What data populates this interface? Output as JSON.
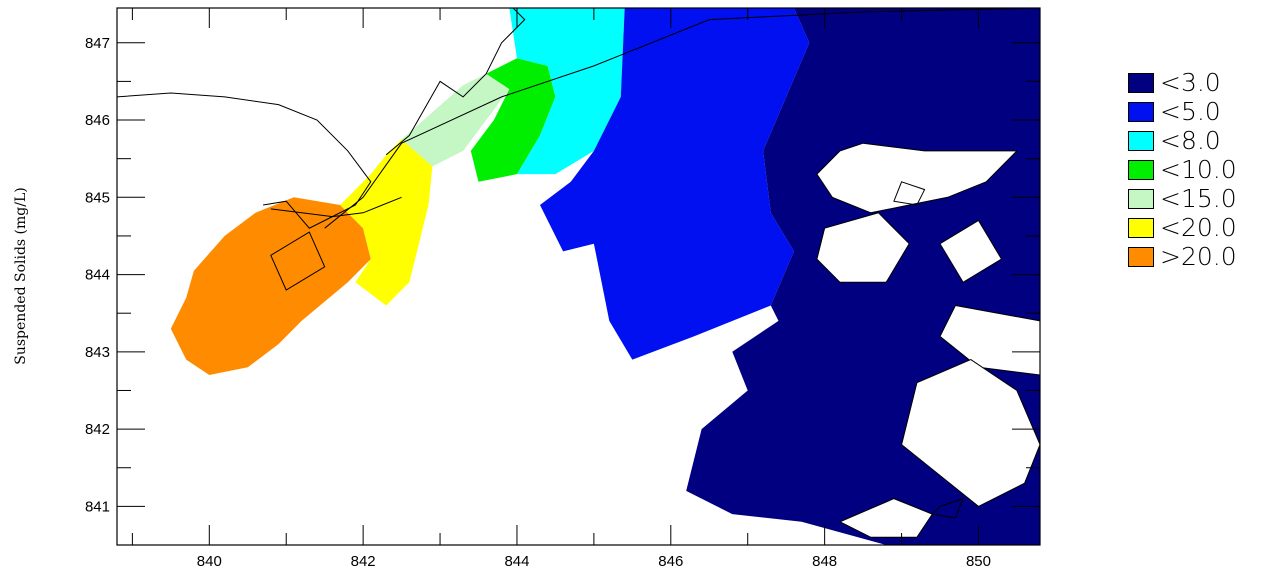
{
  "chart_data": {
    "type": "map",
    "title": "",
    "xlabel": "",
    "ylabel": "Suspended Solids (mg/L)",
    "xlim": [
      838.8,
      850.8
    ],
    "ylim": [
      840.5,
      847.45
    ],
    "x_ticks": [
      "840",
      "842",
      "844",
      "846",
      "848",
      "850"
    ],
    "y_ticks": [
      "841",
      "842",
      "843",
      "844",
      "845",
      "846",
      "847"
    ],
    "x_tick_values": [
      840,
      842,
      844,
      846,
      848,
      850
    ],
    "y_tick_values": [
      841,
      842,
      843,
      844,
      845,
      846,
      847
    ],
    "legend": [
      {
        "label": "<3.0",
        "color": "#000080"
      },
      {
        "label": "<5.0",
        "color": "#0010f0"
      },
      {
        "label": "<8.0",
        "color": "#00ffff"
      },
      {
        "label": "<10.0",
        "color": "#00ee00"
      },
      {
        "label": "<15.0",
        "color": "#c4f7c4"
      },
      {
        "label": "<20.0",
        "color": "#ffff00"
      },
      {
        "label": ">20.0",
        "color": "#ff8c00"
      }
    ],
    "plume_regions": [
      {
        "class": ">20.0",
        "color": "#ff8c00",
        "points": [
          [
            840.5,
            842.8
          ],
          [
            840.0,
            842.7
          ],
          [
            839.7,
            842.9
          ],
          [
            839.5,
            843.3
          ],
          [
            839.7,
            843.7
          ],
          [
            839.8,
            844.05
          ],
          [
            840.2,
            844.5
          ],
          [
            840.6,
            844.8
          ],
          [
            841.1,
            845.0
          ],
          [
            841.7,
            844.9
          ],
          [
            842.0,
            844.6
          ],
          [
            842.1,
            844.2
          ],
          [
            841.8,
            843.9
          ],
          [
            841.2,
            843.4
          ],
          [
            840.9,
            843.1
          ],
          [
            840.5,
            842.8
          ]
        ]
      },
      {
        "class": "<20.0",
        "color": "#ffff00",
        "points": [
          [
            841.7,
            844.9
          ],
          [
            842.1,
            845.3
          ],
          [
            842.3,
            845.55
          ],
          [
            842.5,
            845.75
          ],
          [
            842.9,
            845.4
          ],
          [
            842.85,
            844.9
          ],
          [
            842.7,
            844.3
          ],
          [
            842.6,
            843.9
          ],
          [
            842.3,
            843.6
          ],
          [
            841.9,
            843.9
          ],
          [
            842.1,
            844.2
          ],
          [
            842.0,
            844.6
          ]
        ]
      },
      {
        "class": "<15.0",
        "color": "#c4f7c4",
        "points": [
          [
            842.5,
            845.75
          ],
          [
            842.9,
            846.1
          ],
          [
            843.3,
            846.45
          ],
          [
            843.6,
            846.6
          ],
          [
            843.9,
            846.4
          ],
          [
            843.6,
            846.0
          ],
          [
            843.3,
            845.6
          ],
          [
            842.9,
            845.4
          ]
        ]
      },
      {
        "class": "<10.0",
        "color": "#00ee00",
        "points": [
          [
            843.6,
            846.6
          ],
          [
            844.0,
            846.8
          ],
          [
            844.4,
            846.7
          ],
          [
            844.5,
            846.3
          ],
          [
            844.3,
            845.8
          ],
          [
            844.0,
            845.3
          ],
          [
            843.5,
            845.2
          ],
          [
            843.4,
            845.6
          ],
          [
            843.7,
            846.0
          ],
          [
            843.9,
            846.4
          ]
        ]
      },
      {
        "class": "<8.0",
        "color": "#00ffff",
        "points": [
          [
            844.0,
            846.8
          ],
          [
            843.9,
            847.45
          ],
          [
            845.4,
            847.45
          ],
          [
            845.35,
            846.3
          ],
          [
            845.0,
            845.6
          ],
          [
            844.5,
            845.3
          ],
          [
            844.0,
            845.3
          ],
          [
            844.3,
            845.8
          ],
          [
            844.5,
            846.3
          ],
          [
            844.4,
            846.7
          ]
        ]
      },
      {
        "class": "<5.0",
        "color": "#0010f0",
        "points": [
          [
            845.4,
            847.45
          ],
          [
            847.6,
            847.45
          ],
          [
            847.8,
            847.0
          ],
          [
            847.5,
            846.3
          ],
          [
            847.2,
            845.6
          ],
          [
            847.3,
            844.8
          ],
          [
            847.6,
            844.3
          ],
          [
            847.3,
            843.6
          ],
          [
            846.3,
            843.2
          ],
          [
            845.5,
            842.9
          ],
          [
            845.2,
            843.4
          ],
          [
            845.0,
            844.4
          ],
          [
            844.6,
            844.3
          ],
          [
            844.3,
            844.9
          ],
          [
            844.7,
            845.2
          ],
          [
            845.0,
            845.6
          ],
          [
            845.35,
            846.3
          ]
        ]
      },
      {
        "class": "<3.0",
        "color": "#000080",
        "points": [
          [
            847.6,
            847.45
          ],
          [
            850.8,
            847.45
          ],
          [
            850.8,
            840.5
          ],
          [
            848.8,
            840.5
          ],
          [
            847.7,
            840.8
          ],
          [
            846.8,
            840.9
          ],
          [
            846.2,
            841.2
          ],
          [
            846.4,
            842.0
          ],
          [
            847.0,
            842.5
          ],
          [
            846.8,
            843.0
          ],
          [
            847.4,
            843.4
          ],
          [
            847.3,
            843.6
          ],
          [
            847.6,
            844.3
          ],
          [
            847.3,
            844.8
          ],
          [
            847.2,
            845.6
          ],
          [
            847.5,
            846.3
          ],
          [
            847.8,
            847.0
          ]
        ]
      }
    ],
    "land_holes": [
      [
        [
          848.5,
          845.7
        ],
        [
          849.3,
          845.6
        ],
        [
          850.5,
          845.6
        ],
        [
          850.1,
          845.2
        ],
        [
          849.6,
          845.0
        ],
        [
          849.1,
          844.9
        ],
        [
          848.6,
          844.8
        ],
        [
          848.1,
          845.0
        ],
        [
          847.9,
          845.3
        ],
        [
          848.2,
          845.6
        ]
      ],
      [
        [
          849.5,
          844.4
        ],
        [
          850.0,
          844.7
        ],
        [
          850.3,
          844.2
        ],
        [
          849.8,
          843.9
        ]
      ],
      [
        [
          848.0,
          844.6
        ],
        [
          848.7,
          844.8
        ],
        [
          849.1,
          844.4
        ],
        [
          848.8,
          843.9
        ],
        [
          848.2,
          843.9
        ],
        [
          847.9,
          844.2
        ]
      ],
      [
        [
          849.7,
          843.6
        ],
        [
          850.8,
          843.4
        ],
        [
          850.8,
          842.7
        ],
        [
          850.0,
          842.8
        ],
        [
          849.5,
          843.2
        ]
      ],
      [
        [
          849.2,
          842.6
        ],
        [
          849.9,
          842.9
        ],
        [
          850.5,
          842.5
        ],
        [
          850.8,
          841.8
        ],
        [
          850.6,
          841.3
        ],
        [
          850.0,
          841.0
        ],
        [
          849.5,
          841.4
        ],
        [
          849.0,
          841.8
        ]
      ],
      [
        [
          848.2,
          840.8
        ],
        [
          848.9,
          841.1
        ],
        [
          849.4,
          840.9
        ],
        [
          849.2,
          840.6
        ],
        [
          848.6,
          840.6
        ]
      ]
    ],
    "coastlines": [
      [
        [
          838.8,
          846.3
        ],
        [
          839.5,
          846.35
        ],
        [
          840.2,
          846.3
        ],
        [
          840.9,
          846.2
        ],
        [
          841.4,
          846.0
        ],
        [
          841.8,
          845.6
        ],
        [
          842.1,
          845.2
        ],
        [
          841.9,
          844.9
        ],
        [
          841.5,
          844.7
        ],
        [
          841.3,
          844.6
        ],
        [
          841.0,
          844.95
        ],
        [
          840.7,
          844.9
        ]
      ],
      [
        [
          842.3,
          845.55
        ],
        [
          842.6,
          845.8
        ],
        [
          843.0,
          846.5
        ],
        [
          843.3,
          846.3
        ],
        [
          843.6,
          846.6
        ],
        [
          843.8,
          847.0
        ],
        [
          844.1,
          847.3
        ],
        [
          843.95,
          847.45
        ]
      ],
      [
        [
          847.3,
          847.45
        ],
        [
          848.4,
          847.45
        ],
        [
          850.8,
          847.45
        ]
      ]
    ],
    "transect_lines": [
      [
        [
          841.5,
          844.6
        ],
        [
          842.0,
          845.0
        ],
        [
          842.5,
          845.7
        ],
        [
          843.8,
          846.3
        ],
        [
          845.0,
          846.7
        ],
        [
          846.5,
          847.3
        ],
        [
          847.5,
          847.35
        ],
        [
          848.5,
          847.4
        ],
        [
          850.8,
          847.45
        ]
      ],
      [
        [
          840.8,
          844.85
        ],
        [
          841.6,
          844.75
        ],
        [
          842.0,
          844.8
        ],
        [
          842.5,
          845.0
        ]
      ]
    ],
    "outlined_boxes": [
      [
        [
          840.8,
          844.25
        ],
        [
          841.3,
          844.55
        ],
        [
          841.5,
          844.1
        ],
        [
          841.0,
          843.8
        ]
      ],
      [
        [
          849.0,
          845.2
        ],
        [
          849.3,
          845.1
        ],
        [
          849.2,
          844.9
        ],
        [
          848.9,
          844.95
        ]
      ],
      [
        [
          849.5,
          841.0
        ],
        [
          849.8,
          841.1
        ],
        [
          849.7,
          840.85
        ],
        [
          849.4,
          840.9
        ]
      ]
    ]
  }
}
